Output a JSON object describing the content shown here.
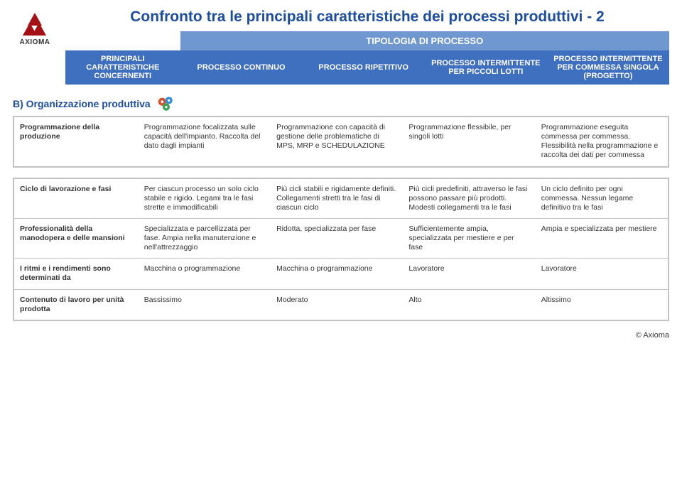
{
  "logo_text": "AXIOMA",
  "page_title": "Confronto tra le principali caratteristiche dei processi produttivi - 2",
  "header": {
    "tipologia_label": "TIPOLOGIA DI PROCESSO",
    "colA_bg": "#3f6fbf",
    "col_bg": "#3f6fbf",
    "colA": "PRINCIPALI CARATTERISTICHE CONCERNENTI",
    "col1": "PROCESSO CONTINUO",
    "col2": "PROCESSO RIPETITIVO",
    "col3": "PROCESSO INTERMITTENTE PER PICCOLI LOTTI",
    "col4": "PROCESSO INTERMITTENTE PER COMMESSA SINGOLA (PROGETTO)",
    "tipologia_bg": "#6f98d0"
  },
  "col_widths": [
    "19%",
    "20.25%",
    "20.25%",
    "20.25%",
    "20.25%"
  ],
  "section_title": "B) Organizzazione produttiva",
  "table1": {
    "rows": [
      {
        "label": "Programmazione della produzione",
        "c1": "Programmazione focalizzata sulle capacità dell'impianto. Raccolta del dato dagli impianti",
        "c2": "Programmazione con capacità di gestione delle problematiche di MPS, MRP e SCHEDULAZIONE",
        "c3": "Programmazione flessibile, per singoli lotti",
        "c4": "Programmazione eseguita commessa per commessa. Flessibilità nella programmazione e raccolta dei dati per commessa"
      }
    ]
  },
  "table2": {
    "rows": [
      {
        "label": "Ciclo di lavorazione e fasi",
        "c1": "Per ciascun processo un solo ciclo stabile e rigido. Legami tra le fasi strette e immodificabili",
        "c2": "Più cicli stabili e rigidamente definiti. Collegamenti stretti tra le fasi di ciascun ciclo",
        "c3": "Più cicli predefiniti, attraverso le fasi possono passare più prodotti. Modesti collegamenti tra le fasi",
        "c4": "Un ciclo definito per ogni commessa. Nessun legame definitivo tra le fasi"
      },
      {
        "label": "Professionalità della manodopera e delle mansioni",
        "c1": "Specializzata e parcellizzata per fase. Ampia nella manutenzione e nell'attrezzaggio",
        "c2": "Ridotta, specializzata per fase",
        "c3": "Sufficientemente ampia, specializzata per mestiere e per fase",
        "c4": "Ampia e specializzata per mestiere"
      },
      {
        "label": "I ritmi e i rendimenti sono determinati da",
        "c1": "Macchina o programmazione",
        "c2": "Macchina o programmazione",
        "c3": "Lavoratore",
        "c4": "Lavoratore"
      },
      {
        "label": "Contenuto di lavoro per unità prodotta",
        "c1": "Bassissimo",
        "c2": "Moderato",
        "c3": "Alto",
        "c4": "Altissimo"
      }
    ]
  },
  "footer": "© Axioma",
  "gear_colors": [
    "#d94f2a",
    "#2a8fd9",
    "#3aa655"
  ]
}
